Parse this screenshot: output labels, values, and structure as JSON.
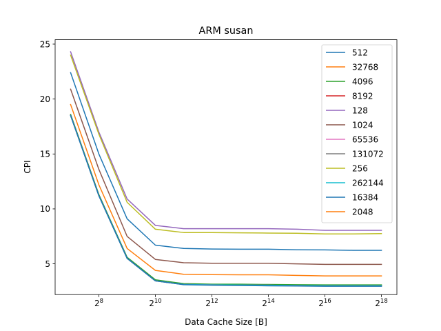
{
  "chart_data": {
    "type": "line",
    "title": "ARM susan",
    "xlabel": "Data Cache Size [B]",
    "ylabel": "CPI",
    "x_scale": "log2",
    "x": [
      128,
      256,
      512,
      1024,
      2048,
      4096,
      8192,
      16384,
      32768,
      65536,
      131072,
      262144
    ],
    "x_tick_values": [
      256,
      1024,
      4096,
      16384,
      65536,
      262144
    ],
    "x_tick_labels": [
      {
        "base": "2",
        "exp": "8"
      },
      {
        "base": "2",
        "exp": "10"
      },
      {
        "base": "2",
        "exp": "12"
      },
      {
        "base": "2",
        "exp": "14"
      },
      {
        "base": "2",
        "exp": "16"
      },
      {
        "base": "2",
        "exp": "18"
      }
    ],
    "ylim": [
      2.2,
      25.4
    ],
    "y_ticks": [
      5,
      10,
      15,
      20,
      25
    ],
    "y_tick_labels": [
      "5",
      "10",
      "15",
      "20",
      "25"
    ],
    "grid": false,
    "legend_position": "upper-right",
    "series": [
      {
        "name": "512",
        "color": "#1f77b4",
        "values": [
          22.4,
          15.0,
          9.1,
          6.7,
          6.4,
          6.35,
          6.33,
          6.33,
          6.28,
          6.27,
          6.23,
          6.23
        ]
      },
      {
        "name": "32768",
        "color": "#ff7f0e",
        "values": [
          18.6,
          11.3,
          5.5,
          3.5,
          3.15,
          3.1,
          3.08,
          3.05,
          3.05,
          3.02,
          3.02,
          3.02
        ]
      },
      {
        "name": "4096",
        "color": "#2ca02c",
        "values": [
          18.6,
          11.3,
          5.6,
          3.55,
          3.2,
          3.15,
          3.15,
          3.12,
          3.1,
          3.08,
          3.08,
          3.08
        ]
      },
      {
        "name": "8192",
        "color": "#d62728",
        "values": [
          18.5,
          11.2,
          5.5,
          3.45,
          3.12,
          3.08,
          3.07,
          3.05,
          3.03,
          3.0,
          3.0,
          3.0
        ]
      },
      {
        "name": "128",
        "color": "#9467bd",
        "values": [
          24.3,
          17.0,
          10.9,
          8.5,
          8.2,
          8.2,
          8.2,
          8.2,
          8.15,
          8.05,
          8.05,
          8.05
        ]
      },
      {
        "name": "1024",
        "color": "#8c564b",
        "values": [
          20.9,
          13.6,
          7.5,
          5.4,
          5.1,
          5.05,
          5.05,
          5.05,
          5.0,
          4.95,
          4.95,
          4.95
        ]
      },
      {
        "name": "65536",
        "color": "#e377c2",
        "values": [
          18.5,
          11.2,
          5.5,
          3.45,
          3.12,
          3.08,
          3.07,
          3.05,
          3.02,
          3.0,
          3.0,
          3.0
        ]
      },
      {
        "name": "131072",
        "color": "#7f7f7f",
        "values": [
          18.5,
          11.2,
          5.5,
          3.45,
          3.12,
          3.08,
          3.07,
          3.05,
          3.02,
          3.0,
          3.0,
          3.0
        ]
      },
      {
        "name": "256",
        "color": "#bcbd22",
        "values": [
          24.0,
          16.8,
          10.6,
          8.15,
          7.85,
          7.85,
          7.82,
          7.8,
          7.78,
          7.72,
          7.72,
          7.75
        ]
      },
      {
        "name": "262144",
        "color": "#17becf",
        "values": [
          18.5,
          11.2,
          5.5,
          3.45,
          3.12,
          3.08,
          3.07,
          3.05,
          3.02,
          3.0,
          3.0,
          3.0
        ]
      },
      {
        "name": "16384",
        "color": "#1f77b4",
        "values": [
          18.5,
          11.2,
          5.5,
          3.45,
          3.1,
          3.05,
          3.03,
          3.0,
          2.98,
          2.96,
          2.96,
          2.96
        ]
      },
      {
        "name": "2048",
        "color": "#ff7f0e",
        "values": [
          19.5,
          12.2,
          6.4,
          4.4,
          4.05,
          4.02,
          4.0,
          4.0,
          3.95,
          3.9,
          3.9,
          3.9
        ]
      }
    ]
  }
}
